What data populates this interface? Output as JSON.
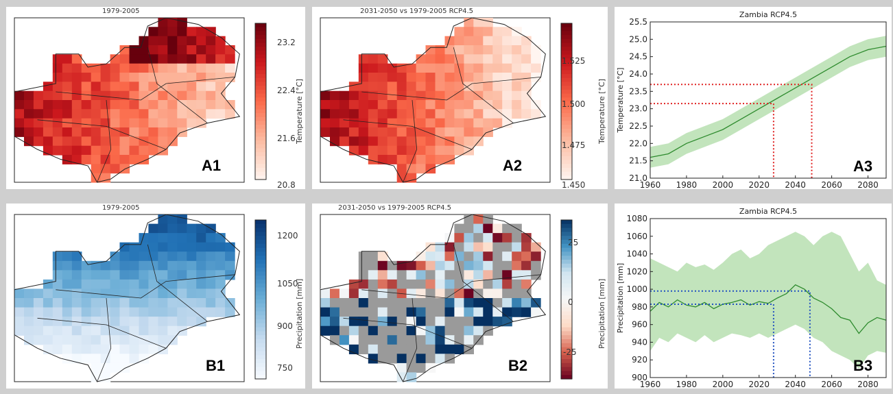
{
  "panels": {
    "A1": {
      "title": "1979-2005",
      "label": "A1",
      "colorbar": {
        "label": "Temperature [°C]",
        "ticks": [
          "23.2",
          "22.4",
          "21.6",
          "20.8"
        ],
        "range": [
          20.8,
          23.5
        ],
        "colormap": "Reds"
      }
    },
    "A2": {
      "title": "2031-2050 vs 1979-2005 RCP4.5",
      "label": "A2",
      "colorbar": {
        "label": "Temperature [°C]",
        "ticks": [
          "1.525",
          "1.500",
          "1.475",
          "1.450"
        ],
        "range": [
          1.45,
          1.545
        ],
        "colormap": "Reds"
      }
    },
    "B1": {
      "title": "1979-2005",
      "label": "B1",
      "colorbar": {
        "label": "Precipitation [mm]",
        "ticks": [
          "1200",
          "1050",
          "900",
          "750"
        ],
        "range": [
          700,
          1250
        ],
        "colormap": "Blues"
      }
    },
    "B2": {
      "title": "2031-2050 vs 1979-2005 RCP4.5",
      "label": "B2",
      "colorbar": {
        "label": "Precipitation [mm]",
        "ticks": [
          "25",
          "0",
          "-25"
        ],
        "range": [
          -45,
          45
        ],
        "colormap": "RdBu"
      }
    }
  },
  "chart_data": [
    {
      "panel": "A3",
      "type": "line",
      "title": "Zambia  RCP4.5",
      "label": "A3",
      "xlabel": "",
      "ylabel": "Temperature [°C]",
      "xlim": [
        1960,
        2090
      ],
      "ylim": [
        21.0,
        25.5
      ],
      "xticks": [
        "1960",
        "1980",
        "2000",
        "2020",
        "2040",
        "2060",
        "2080"
      ],
      "yticks": [
        "21.0",
        "21.5",
        "22.0",
        "22.5",
        "23.0",
        "23.5",
        "24.0",
        "24.5",
        "25.0",
        "25.5"
      ],
      "series": [
        {
          "x": [
            1960,
            1970,
            1980,
            1990,
            2000,
            2010,
            2020,
            2030,
            2040,
            2050,
            2060,
            2070,
            2080,
            2090
          ],
          "y": [
            21.6,
            21.7,
            22.0,
            22.2,
            22.4,
            22.7,
            23.0,
            23.3,
            23.6,
            23.9,
            24.2,
            24.5,
            24.7,
            24.8
          ],
          "lower": [
            21.3,
            21.4,
            21.7,
            21.9,
            22.1,
            22.4,
            22.7,
            23.0,
            23.3,
            23.6,
            23.9,
            24.2,
            24.4,
            24.5
          ],
          "upper": [
            21.9,
            22.0,
            22.3,
            22.5,
            22.7,
            23.0,
            23.3,
            23.6,
            23.9,
            24.2,
            24.5,
            24.8,
            25.0,
            25.1
          ]
        }
      ],
      "markers": [
        {
          "x": 2028,
          "y": 23.15
        },
        {
          "x": 2049,
          "y": 23.7
        }
      ],
      "colors": {
        "line": "#2e8b2e",
        "band": "#a8d8a0",
        "marker": "#e02020"
      }
    },
    {
      "panel": "B3",
      "type": "line",
      "title": "Zambia  RCP4.5",
      "label": "B3",
      "xlabel": "",
      "ylabel": "Precipitation [mm]",
      "xlim": [
        1960,
        2090
      ],
      "ylim": [
        900,
        1080
      ],
      "xticks": [
        "1960",
        "1980",
        "2000",
        "2020",
        "2040",
        "2060",
        "2080"
      ],
      "yticks": [
        "900",
        "920",
        "940",
        "960",
        "980",
        "1000",
        "1020",
        "1040",
        "1060",
        "1080"
      ],
      "series": [
        {
          "x": [
            1960,
            1965,
            1970,
            1975,
            1980,
            1985,
            1990,
            1995,
            2000,
            2005,
            2010,
            2015,
            2020,
            2025,
            2030,
            2035,
            2040,
            2045,
            2050,
            2055,
            2060,
            2065,
            2070,
            2075,
            2080,
            2085,
            2090
          ],
          "y": [
            975,
            985,
            980,
            988,
            982,
            980,
            985,
            978,
            983,
            985,
            988,
            982,
            986,
            984,
            990,
            995,
            1005,
            1000,
            990,
            985,
            978,
            968,
            965,
            950,
            962,
            968,
            965
          ],
          "lower": [
            930,
            945,
            940,
            950,
            945,
            940,
            948,
            940,
            945,
            950,
            948,
            945,
            950,
            945,
            950,
            955,
            960,
            955,
            945,
            940,
            930,
            925,
            920,
            910,
            925,
            930,
            928
          ],
          "upper": [
            1035,
            1030,
            1025,
            1020,
            1030,
            1025,
            1028,
            1022,
            1030,
            1040,
            1045,
            1035,
            1040,
            1050,
            1055,
            1060,
            1065,
            1060,
            1050,
            1060,
            1065,
            1060,
            1040,
            1020,
            1030,
            1010,
            1005
          ]
        }
      ],
      "markers": [
        {
          "x": 2028,
          "y": 983
        },
        {
          "x": 2048,
          "y": 998
        }
      ],
      "colors": {
        "line": "#2e8b2e",
        "band": "#a8d8a0",
        "marker": "#2050c0"
      }
    }
  ]
}
